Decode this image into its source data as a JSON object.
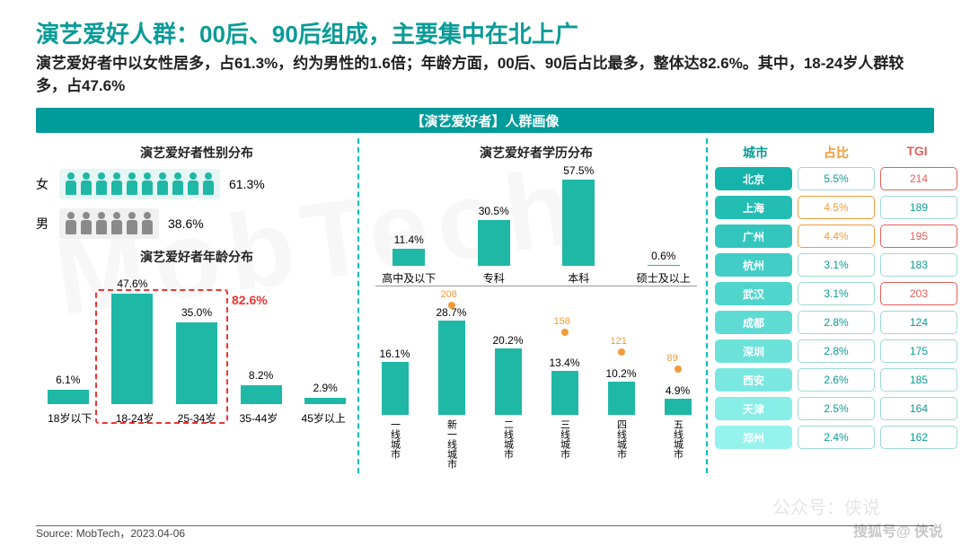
{
  "colors": {
    "teal": "#1fb8a6",
    "teal_dark": "#0a9b97",
    "banner": "#009b9b",
    "orange": "#f29b3a",
    "red": "#e4605c",
    "female_row_bg": "#e6f6f4",
    "male_row_bg": "#f0f0f0",
    "male_icon": "#8a8a8a"
  },
  "title_text": "演艺爱好人群：00后、90后组成，主要集中在北上广",
  "title_color": "#0a9b97",
  "subtitle_text": "演艺爱好者中以女性居多，占61.3%，约为男性的1.6倍；年龄方面，00后、90后占比最多，整体达82.6%。其中，18-24岁人群较多，占47.6%",
  "banner_text": "【演艺爱好者】人群画像",
  "gender": {
    "title": "演艺爱好者性别分布",
    "female": {
      "label": "女",
      "pct": "61.3%",
      "icons": 10
    },
    "male": {
      "label": "男",
      "pct": "38.6%",
      "icons": 6
    }
  },
  "age": {
    "title": "演艺爱好者年龄分布",
    "type": "bar",
    "ylim": 50,
    "bars": [
      {
        "label": "18岁以下",
        "value": 6.1,
        "text": "6.1%"
      },
      {
        "label": "18-24岁",
        "value": 47.6,
        "text": "47.6%"
      },
      {
        "label": "25-34岁",
        "value": 35.0,
        "text": "35.0%"
      },
      {
        "label": "35-44岁",
        "value": 8.2,
        "text": "8.2%"
      },
      {
        "label": "45岁以上",
        "value": 2.9,
        "text": "2.9%"
      }
    ],
    "highlight": {
      "start_idx": 1,
      "end_idx": 2,
      "label": "82.6%"
    }
  },
  "edu": {
    "title": "演艺爱好者学历分布",
    "type": "bar",
    "ylim": 60,
    "bars": [
      {
        "label": "高中及以下",
        "value": 11.4,
        "text": "11.4%"
      },
      {
        "label": "专科",
        "value": 30.5,
        "text": "30.5%"
      },
      {
        "label": "本科",
        "value": 57.5,
        "text": "57.5%"
      },
      {
        "label": "硕士及以上",
        "value": 0.6,
        "text": "0.6%"
      }
    ]
  },
  "city_tier": {
    "type": "bar+scatter",
    "ylim_bar": 30,
    "ylim_tgi": 220,
    "items": [
      {
        "label": "一线城市",
        "value": 16.1,
        "text": "16.1%",
        "tgi": null,
        "tgi_text": ""
      },
      {
        "label": "新一线城市",
        "value": 28.7,
        "text": "28.7%",
        "tgi": 208,
        "tgi_text": "208"
      },
      {
        "label": "二线城市",
        "value": 20.2,
        "text": "20.2%",
        "tgi": null,
        "tgi_text": ""
      },
      {
        "label": "三线城市",
        "value": 13.4,
        "text": "13.4%",
        "tgi": 158,
        "tgi_text": "158"
      },
      {
        "label": "四线城市",
        "value": 10.2,
        "text": "10.2%",
        "tgi": 121,
        "tgi_text": "121"
      },
      {
        "label": "五线城市",
        "value": 4.9,
        "text": "4.9%",
        "tgi": 89,
        "tgi_text": "89"
      }
    ]
  },
  "city_table": {
    "headers": {
      "city": "城市",
      "pct": "占比",
      "tgi": "TGI"
    },
    "rows": [
      {
        "city": "北京",
        "pct": "5.5%",
        "tgi": "214",
        "bg": "#16b3aa",
        "tgi_hi": true
      },
      {
        "city": "上海",
        "pct": "4.5%",
        "tgi": "189",
        "bg": "#24bdb4",
        "pct_hi": true
      },
      {
        "city": "广州",
        "pct": "4.4%",
        "tgi": "195",
        "bg": "#33c6be",
        "pct_hi": true,
        "tgi_hi": true
      },
      {
        "city": "杭州",
        "pct": "3.1%",
        "tgi": "183",
        "bg": "#42cec6"
      },
      {
        "city": "武汉",
        "pct": "3.1%",
        "tgi": "203",
        "bg": "#50d5cd",
        "tgi_hi": true
      },
      {
        "city": "成都",
        "pct": "2.8%",
        "tgi": "124",
        "bg": "#5edcd4"
      },
      {
        "city": "深圳",
        "pct": "2.8%",
        "tgi": "175",
        "bg": "#6ce2db"
      },
      {
        "city": "西安",
        "pct": "2.6%",
        "tgi": "185",
        "bg": "#7ae8e1"
      },
      {
        "city": "天津",
        "pct": "2.5%",
        "tgi": "164",
        "bg": "#88ede7"
      },
      {
        "city": "郑州",
        "pct": "2.4%",
        "tgi": "162",
        "bg": "#96f2ec"
      }
    ]
  },
  "source": "Source: MobTech，2023.04-06",
  "watermark_main": "MobTech",
  "watermark_corner": "搜狐号@ 侠说",
  "watermark_mid": "公众号：侠说"
}
